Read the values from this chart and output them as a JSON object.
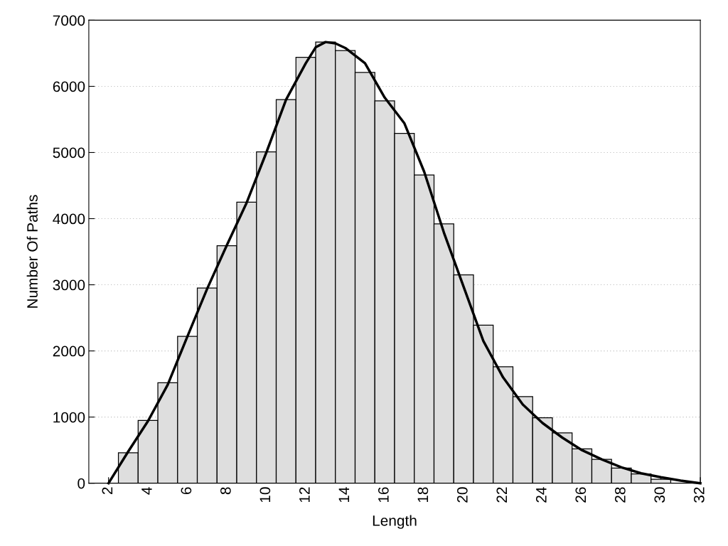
{
  "chart_data": {
    "type": "histogram",
    "xlabel": "Length",
    "ylabel": "Number Of Paths",
    "bins": [
      2.5,
      3.5,
      4.5,
      5.5,
      6.5,
      7.5,
      8.5,
      9.5,
      10.5,
      11.5,
      12.5,
      13.5,
      14.5,
      15.5,
      16.5,
      17.5,
      18.5,
      19.5,
      20.5,
      21.5,
      22.5,
      23.5,
      24.5,
      25.5,
      26.5,
      27.5,
      28.5,
      29.5,
      30.5,
      31.5
    ],
    "values": [
      460,
      950,
      1520,
      2220,
      2950,
      3590,
      4250,
      5010,
      5800,
      6440,
      6670,
      6540,
      6210,
      5780,
      5290,
      4660,
      3920,
      3150,
      2390,
      1760,
      1310,
      990,
      760,
      520,
      360,
      230,
      140,
      60,
      null
    ],
    "color": "#dedede",
    "series": [
      {
        "type": "line",
        "color": "#000000",
        "x": [
          2,
          3,
          4,
          5,
          6,
          7,
          8,
          9,
          10,
          11,
          12,
          12.5,
          13,
          13.5,
          14,
          15,
          16,
          17,
          18,
          19,
          20,
          21,
          22,
          23,
          24,
          25,
          26,
          27,
          28,
          29,
          30,
          31,
          32
        ],
        "values": [
          0,
          480,
          940,
          1490,
          2220,
          2940,
          3600,
          4240,
          5000,
          5800,
          6350,
          6590,
          6670,
          6650,
          6580,
          6350,
          5830,
          5440,
          4710,
          3790,
          2970,
          2150,
          1600,
          1190,
          910,
          690,
          500,
          360,
          240,
          150,
          90,
          40,
          0
        ]
      }
    ],
    "xlim": [
      1,
      32
    ],
    "xticks": [
      2,
      4,
      6,
      8,
      10,
      12,
      14,
      16,
      18,
      20,
      22,
      24,
      26,
      28,
      30,
      32
    ],
    "ylim": [
      0,
      7000
    ],
    "yticks": [
      0,
      1000,
      2000,
      3000,
      4000,
      5000,
      6000,
      7000
    ],
    "grid": "y"
  }
}
